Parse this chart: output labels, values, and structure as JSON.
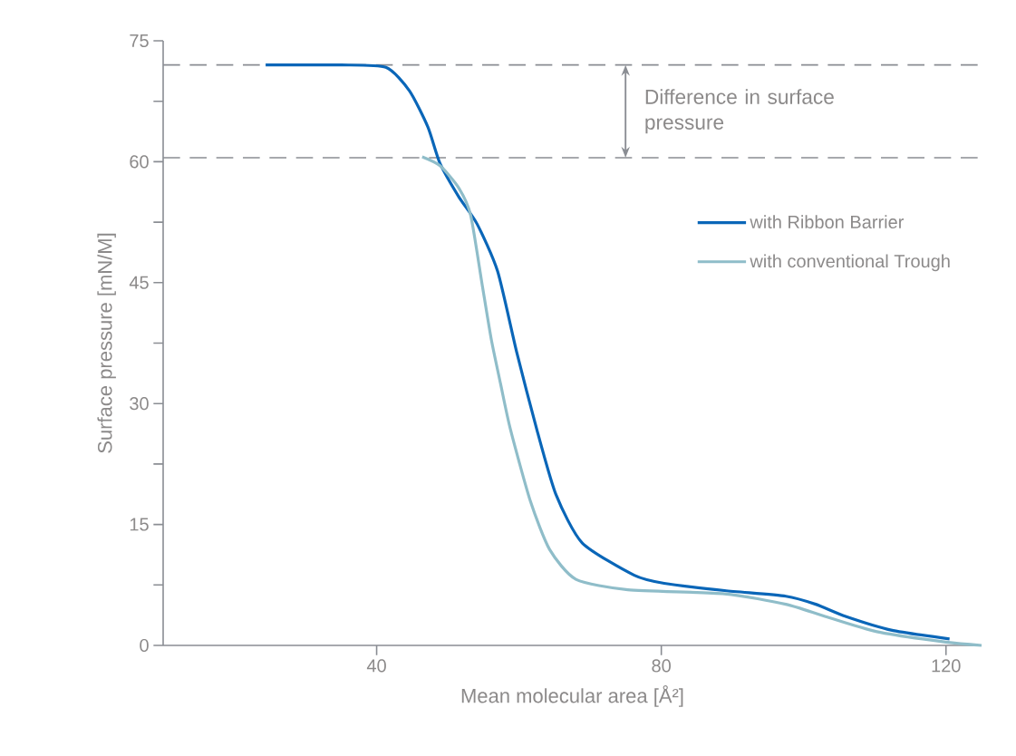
{
  "chart_data": {
    "type": "line",
    "xlabel": "Mean molecular area [Å²]",
    "ylabel": "Surface pressure [mN/M]",
    "xlim": [
      10,
      125
    ],
    "xticks": [
      40,
      80,
      120
    ],
    "ylim": [
      0,
      75
    ],
    "yticks": [
      0,
      {
        "value": 7.5,
        "label": null
      },
      15,
      {
        "value": 22.5,
        "label": null
      },
      30,
      {
        "value": 37.5,
        "label": null
      },
      45,
      {
        "value": 52.5,
        "label": null
      },
      60,
      {
        "value": 67.5,
        "label": null
      },
      75
    ],
    "grid": false,
    "legend": "right",
    "marker": "none",
    "line_style": "solid",
    "series": [
      {
        "name": "with Ribbon Barrier",
        "color": "#0a66b8",
        "x": [
          24.4,
          30,
          35,
          41.3,
          44.6,
          47.2,
          48.9,
          51.5,
          54.1,
          57.0,
          59.7,
          62.5,
          65.2,
          68.9,
          76.2,
          80.4,
          88.9,
          97.5,
          101.7,
          105.9,
          112.3,
          120.5
        ],
        "values": [
          72,
          72,
          72,
          71.7,
          68.8,
          64.3,
          59.8,
          55.7,
          52.3,
          46.4,
          36.3,
          26.8,
          18.7,
          12.7,
          8.7,
          7.7,
          6.8,
          6.1,
          5.1,
          3.6,
          1.9,
          0.8
        ]
      },
      {
        "name": "with conventional Trough",
        "color": "#8fbdc9",
        "x": [
          46.4,
          48.9,
          51.5,
          53.2,
          54.8,
          56.1,
          57.4,
          58.8,
          61.6,
          64.3,
          68.0,
          75.3,
          88.9,
          97.5,
          103.0,
          110.3,
          120.0,
          125.0
        ],
        "values": [
          60.6,
          59.5,
          56.8,
          53.4,
          44.9,
          38.0,
          32.5,
          26.8,
          17.9,
          11.9,
          8.2,
          6.9,
          6.4,
          5.1,
          3.6,
          1.7,
          0.4,
          0.0
        ]
      }
    ],
    "ref_lines": [
      {
        "axis": "y",
        "value": 72,
        "color": "#8a8d93",
        "line_style": "dashed"
      },
      {
        "axis": "y",
        "value": 60.5,
        "color": "#8a8d93",
        "line_style": "dashed"
      }
    ],
    "annotations": [
      "Difference in surface pressure"
    ]
  }
}
